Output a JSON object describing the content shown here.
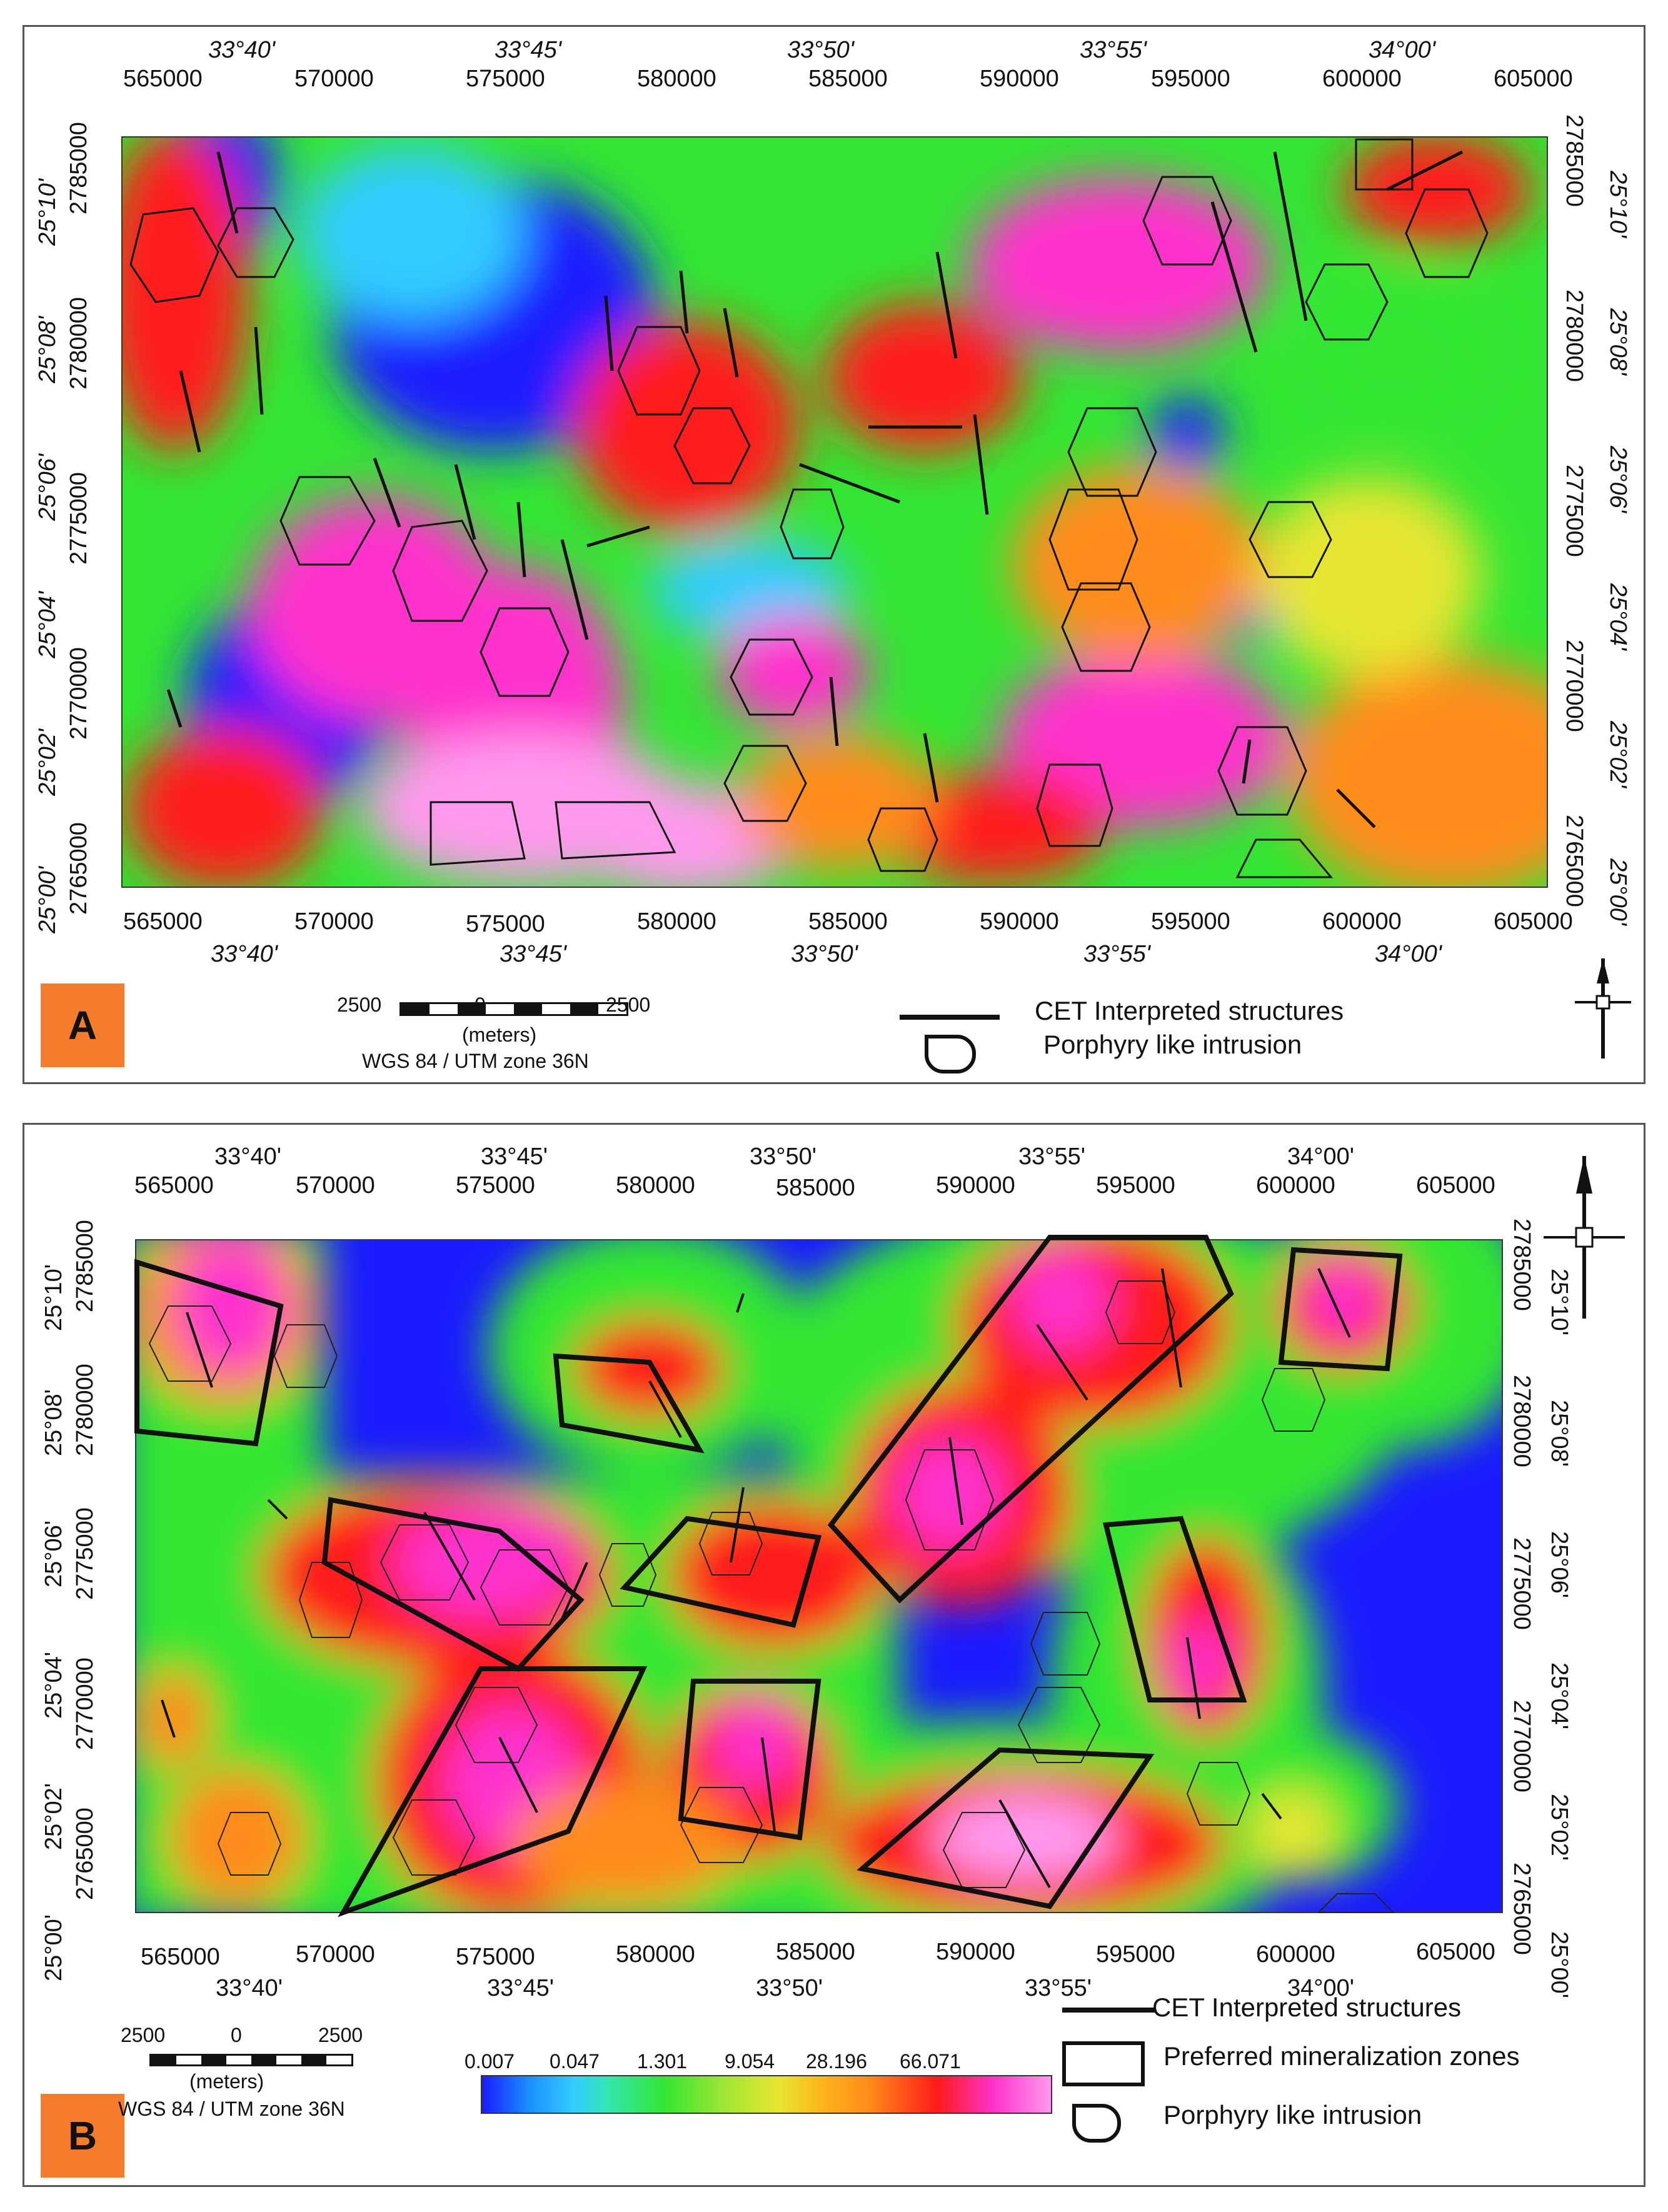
{
  "panels": [
    {
      "id": "A",
      "label": "A",
      "top_eastings": [
        "565000",
        "570000",
        "575000",
        "580000",
        "585000",
        "590000",
        "595000",
        "600000",
        "605000"
      ],
      "bottom_eastings": [
        "565000",
        "570000",
        "575000",
        "580000",
        "585000",
        "590000",
        "595000",
        "600000",
        "605000"
      ],
      "top_longitudes": [
        "33°40'",
        "33°45'",
        "33°50'",
        "33°55'",
        "34°00'"
      ],
      "bottom_longitudes": [
        "33°40'",
        "33°45'",
        "33°50'",
        "33°55'",
        "34°00'"
      ],
      "left_northings": [
        "2785000",
        "2780000",
        "2775000",
        "2770000",
        "2765000"
      ],
      "right_northings": [
        "2785000",
        "2780000",
        "2775000",
        "2770000",
        "2765000"
      ],
      "left_latitudes": [
        "25°10'",
        "25°08'",
        "25°06'",
        "25°04'",
        "25°02'",
        "25°00'"
      ],
      "right_latitudes": [
        "25°10'",
        "25°08'",
        "25°06'",
        "25°04'",
        "25°02'",
        "25°00'"
      ],
      "scale": {
        "left": "2500",
        "mid": "0",
        "right": "2500",
        "unit": "(meters)",
        "projection": "WGS 84 / UTM zone 36N"
      },
      "legend": {
        "structures": "CET Interpreted structures",
        "intrusion": "Porphyry like intrusion"
      }
    },
    {
      "id": "B",
      "label": "B",
      "top_eastings": [
        "565000",
        "570000",
        "575000",
        "580000",
        "585000",
        "590000",
        "595000",
        "600000",
        "605000"
      ],
      "bottom_eastings": [
        "565000",
        "570000",
        "575000",
        "580000",
        "585000",
        "590000",
        "595000",
        "600000",
        "605000"
      ],
      "top_longitudes": [
        "33°40'",
        "33°45'",
        "33°50'",
        "33°55'",
        "34°00'"
      ],
      "bottom_longitudes": [
        "33°40'",
        "33°45'",
        "33°50'",
        "33°55'",
        "34°00'"
      ],
      "left_northings": [
        "2785000",
        "2780000",
        "2775000",
        "2770000",
        "2765000"
      ],
      "right_northings": [
        "2785000",
        "2780000",
        "2775000",
        "2770000",
        "2765000"
      ],
      "left_latitudes": [
        "25°10'",
        "25°08'",
        "25°06'",
        "25°04'",
        "25°02'",
        "25°00'"
      ],
      "right_latitudes": [
        "25°10'",
        "25°08'",
        "25°06'",
        "25°04'",
        "25°02'",
        "25°00'"
      ],
      "scale": {
        "left": "2500",
        "mid": "0",
        "right": "2500",
        "unit": "(meters)",
        "projection": "WGS 84 / UTM zone 36N"
      },
      "colorbar": [
        "0.007",
        "0.047",
        "1.301",
        "9.054",
        "28.196",
        "66.071"
      ],
      "legend": {
        "structures": "CET Interpreted structures",
        "zones": "Preferred mineralization zones",
        "intrusion": "Porphyry like intrusion"
      }
    }
  ],
  "colors": {
    "blue": "#1a1aff",
    "cyan": "#33ccff",
    "green": "#33e633",
    "yellow": "#e6e633",
    "orange": "#ff8c1a",
    "red": "#ff1a1a",
    "magenta": "#ff33cc",
    "pink": "#ff99ee",
    "label_bg": "#f47c2c"
  },
  "icons": [
    "north-arrow-icon",
    "line-legend-icon",
    "polygon-legend-icon",
    "intrusion-legend-icon"
  ]
}
